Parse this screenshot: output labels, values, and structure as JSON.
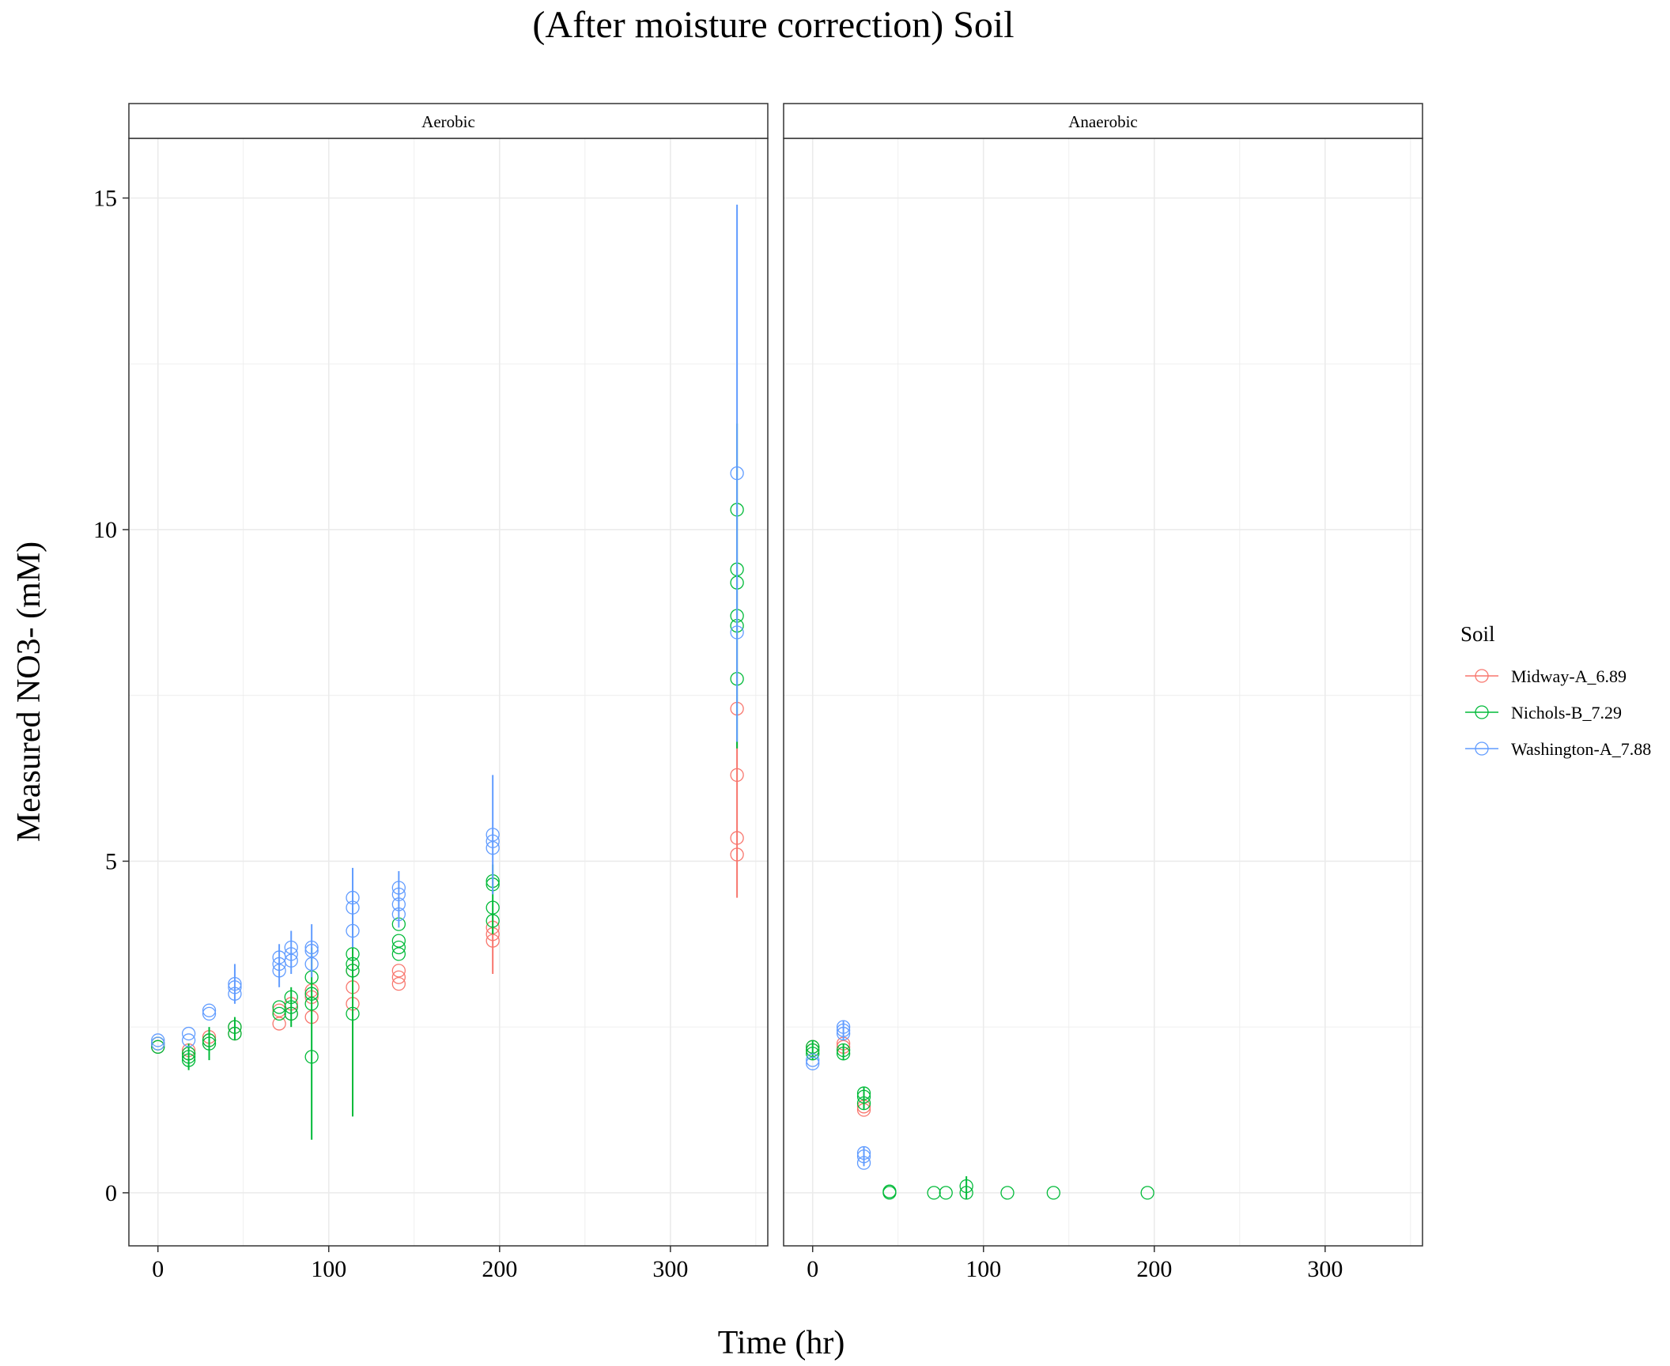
{
  "chart_data": {
    "type": "scatter",
    "title": "(After moisture correction) Soil",
    "xlabel": "Time (hr)",
    "ylabel": "Measured NO3- (mM)",
    "xlim": [
      -17,
      357
    ],
    "ylim": [
      -0.8,
      15.9
    ],
    "xticks": [
      0,
      100,
      200,
      300
    ],
    "yticks": [
      0,
      5,
      10,
      15
    ],
    "grid": true,
    "legend": {
      "title": "Soil",
      "placement": "right"
    },
    "series_colors": {
      "Midway-A_6.89": "#F8766D",
      "Nichols-B_7.29": "#00BA38",
      "Washington-A_7.88": "#619CFF"
    },
    "panels": [
      {
        "name": "Aerobic",
        "series": [
          {
            "name": "Midway-A_6.89",
            "points": [
              [
                0,
                2.2
              ],
              [
                0,
                2.25
              ],
              [
                18,
                2.1
              ],
              [
                18,
                2.15
              ],
              [
                30,
                2.3
              ],
              [
                30,
                2.35
              ],
              [
                45,
                2.4
              ],
              [
                45,
                2.5
              ],
              [
                71,
                2.55
              ],
              [
                71,
                2.75
              ],
              [
                78,
                2.7
              ],
              [
                78,
                2.85
              ],
              [
                90,
                2.65
              ],
              [
                90,
                2.95
              ],
              [
                90,
                3.05
              ],
              [
                114,
                2.85
              ],
              [
                114,
                3.1
              ],
              [
                114,
                3.35
              ],
              [
                141,
                3.15
              ],
              [
                141,
                3.25
              ],
              [
                141,
                3.35
              ],
              [
                196,
                3.8
              ],
              [
                196,
                3.9
              ],
              [
                196,
                4.0
              ],
              [
                339,
                5.1
              ],
              [
                339,
                5.35
              ],
              [
                339,
                6.3
              ],
              [
                339,
                7.3
              ]
            ],
            "error_bars": [
              [
                196,
                3.3,
                4.2
              ],
              [
                339,
                4.45,
                6.8
              ]
            ]
          },
          {
            "name": "Nichols-B_7.29",
            "points": [
              [
                0,
                2.2
              ],
              [
                0,
                2.25
              ],
              [
                18,
                2.0
              ],
              [
                18,
                2.05
              ],
              [
                18,
                2.1
              ],
              [
                30,
                2.25
              ],
              [
                30,
                2.3
              ],
              [
                45,
                2.4
              ],
              [
                45,
                2.5
              ],
              [
                71,
                2.7
              ],
              [
                71,
                2.8
              ],
              [
                78,
                2.7
              ],
              [
                78,
                2.8
              ],
              [
                78,
                2.95
              ],
              [
                90,
                2.05
              ],
              [
                90,
                2.85
              ],
              [
                90,
                3.0
              ],
              [
                90,
                3.25
              ],
              [
                114,
                2.7
              ],
              [
                114,
                3.35
              ],
              [
                114,
                3.45
              ],
              [
                114,
                3.6
              ],
              [
                141,
                3.6
              ],
              [
                141,
                3.7
              ],
              [
                141,
                3.8
              ],
              [
                141,
                4.05
              ],
              [
                196,
                4.1
              ],
              [
                196,
                4.3
              ],
              [
                196,
                4.65
              ],
              [
                196,
                4.7
              ],
              [
                339,
                7.75
              ],
              [
                339,
                8.55
              ],
              [
                339,
                8.7
              ],
              [
                339,
                9.2
              ],
              [
                339,
                9.4
              ],
              [
                339,
                10.3
              ]
            ],
            "error_bars": [
              [
                18,
                1.85,
                2.25
              ],
              [
                30,
                2.0,
                2.5
              ],
              [
                45,
                2.3,
                2.65
              ],
              [
                78,
                2.5,
                3.1
              ],
              [
                90,
                0.8,
                3.7
              ],
              [
                114,
                1.15,
                4.3
              ],
              [
                196,
                3.9,
                4.95
              ],
              [
                339,
                6.7,
                11.6
              ]
            ]
          },
          {
            "name": "Washington-A_7.88",
            "points": [
              [
                0,
                2.25
              ],
              [
                0,
                2.3
              ],
              [
                18,
                2.3
              ],
              [
                18,
                2.4
              ],
              [
                30,
                2.7
              ],
              [
                30,
                2.75
              ],
              [
                45,
                3.0
              ],
              [
                45,
                3.1
              ],
              [
                45,
                3.15
              ],
              [
                71,
                3.35
              ],
              [
                71,
                3.45
              ],
              [
                71,
                3.55
              ],
              [
                78,
                3.5
              ],
              [
                78,
                3.6
              ],
              [
                78,
                3.7
              ],
              [
                90,
                3.45
              ],
              [
                90,
                3.65
              ],
              [
                90,
                3.7
              ],
              [
                114,
                3.95
              ],
              [
                114,
                4.3
              ],
              [
                114,
                4.45
              ],
              [
                141,
                4.2
              ],
              [
                141,
                4.35
              ],
              [
                141,
                4.5
              ],
              [
                141,
                4.6
              ],
              [
                196,
                5.2
              ],
              [
                196,
                5.3
              ],
              [
                196,
                5.4
              ],
              [
                339,
                8.45
              ],
              [
                339,
                10.85
              ]
            ],
            "error_bars": [
              [
                45,
                2.85,
                3.45
              ],
              [
                71,
                3.1,
                3.75
              ],
              [
                78,
                3.3,
                3.95
              ],
              [
                90,
                3.25,
                4.05
              ],
              [
                114,
                3.7,
                4.9
              ],
              [
                141,
                4.0,
                4.85
              ],
              [
                196,
                4.5,
                6.3
              ],
              [
                339,
                6.8,
                14.9
              ]
            ]
          }
        ]
      },
      {
        "name": "Anaerobic",
        "series": [
          {
            "name": "Midway-A_6.89",
            "points": [
              [
                0,
                2.15
              ],
              [
                0,
                2.2
              ],
              [
                18,
                2.2
              ],
              [
                18,
                2.25
              ],
              [
                30,
                1.25
              ],
              [
                30,
                1.3
              ]
            ],
            "error_bars": []
          },
          {
            "name": "Nichols-B_7.29",
            "points": [
              [
                0,
                2.1
              ],
              [
                0,
                2.15
              ],
              [
                0,
                2.2
              ],
              [
                18,
                2.1
              ],
              [
                18,
                2.15
              ],
              [
                30,
                1.35
              ],
              [
                30,
                1.45
              ],
              [
                30,
                1.5
              ],
              [
                45,
                0.0
              ],
              [
                45,
                0.02
              ],
              [
                71,
                0.0
              ],
              [
                78,
                0.0
              ],
              [
                90,
                0.0
              ],
              [
                90,
                0.1
              ],
              [
                114,
                0.0
              ],
              [
                141,
                0.0
              ],
              [
                196,
                0.0
              ]
            ],
            "error_bars": [
              [
                0,
                2.0,
                2.3
              ],
              [
                18,
                2.0,
                2.25
              ],
              [
                30,
                1.25,
                1.6
              ],
              [
                90,
                -0.1,
                0.25
              ]
            ]
          },
          {
            "name": "Washington-A_7.88",
            "points": [
              [
                0,
                1.95
              ],
              [
                0,
                2.0
              ],
              [
                18,
                2.4
              ],
              [
                18,
                2.45
              ],
              [
                18,
                2.5
              ],
              [
                30,
                0.45
              ],
              [
                30,
                0.55
              ],
              [
                30,
                0.6
              ]
            ],
            "error_bars": [
              [
                18,
                2.3,
                2.6
              ],
              [
                30,
                0.4,
                0.7
              ]
            ]
          }
        ]
      }
    ]
  }
}
